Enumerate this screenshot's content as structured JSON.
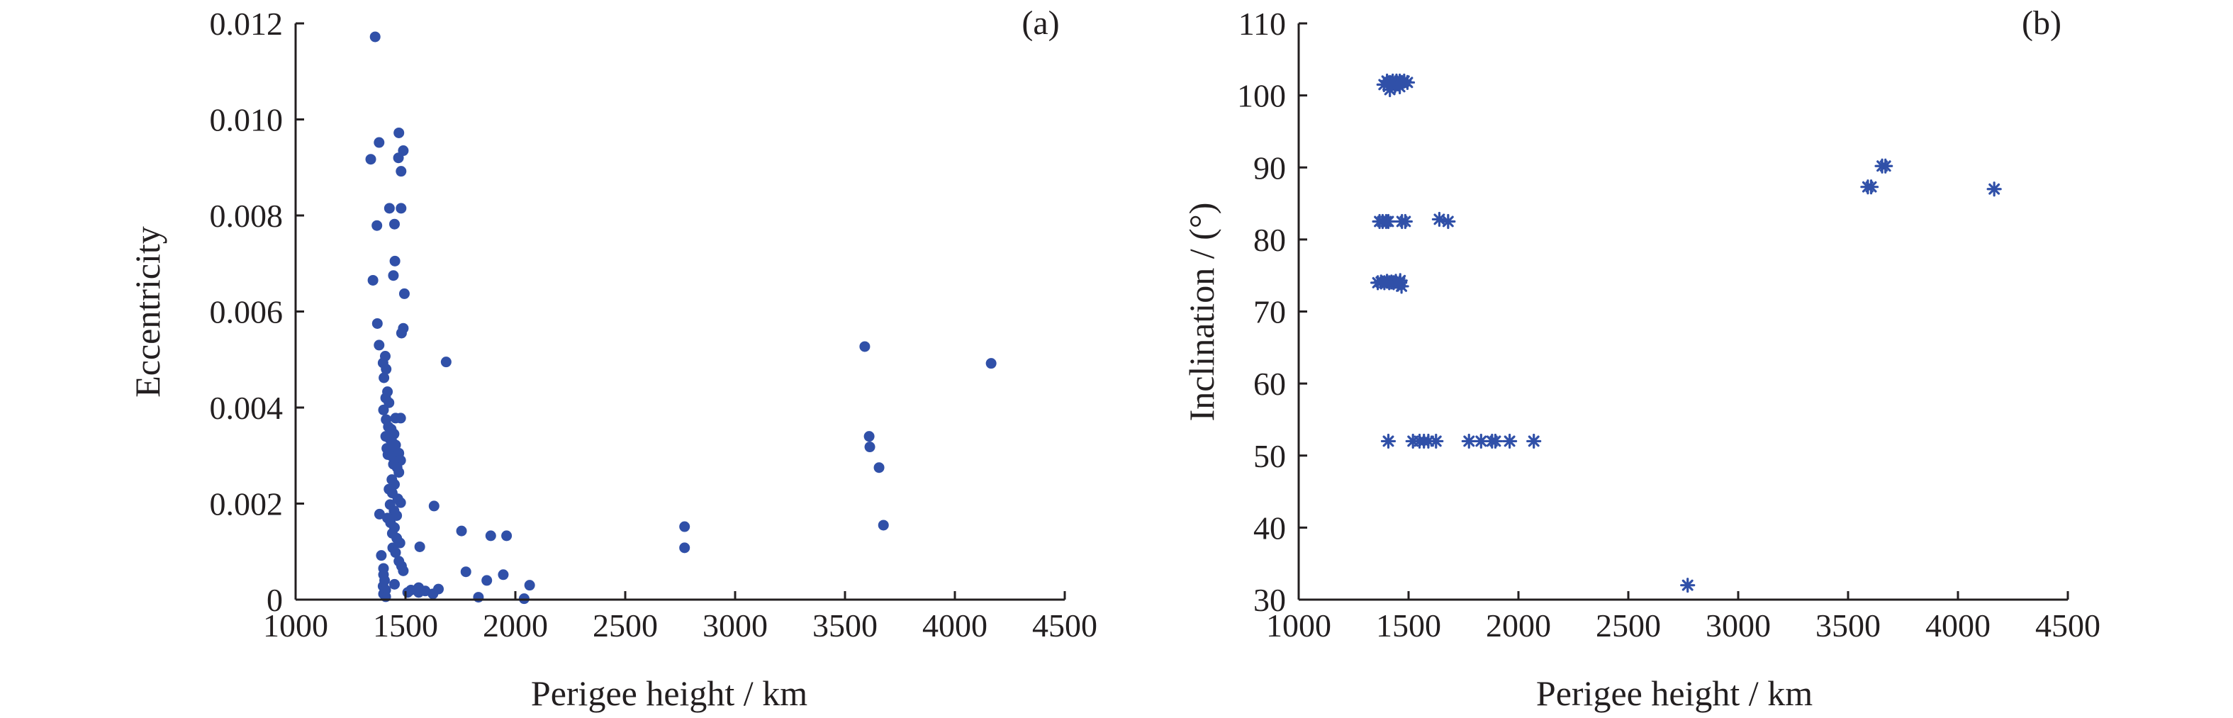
{
  "colors": {
    "marker": "#3050a8",
    "axis": "#231f20"
  },
  "chart_data": [
    {
      "type": "scatter",
      "panel_tag": "(a)",
      "xlabel": "Perigee height / km",
      "ylabel": "Eccentricity",
      "xlim": [
        1000,
        4500
      ],
      "ylim": [
        0,
        0.012
      ],
      "x_ticks": [
        1000,
        1500,
        2000,
        2500,
        3000,
        3500,
        4000,
        4500
      ],
      "x_tick_labels": [
        "1000",
        "1500",
        "2000",
        "2500",
        "3000",
        "3500",
        "4000",
        "4500"
      ],
      "y_ticks": [
        0,
        0.002,
        0.004,
        0.006,
        0.008,
        0.01,
        0.012
      ],
      "y_tick_labels": [
        "0",
        "0.002",
        "0.004",
        "0.006",
        "0.008",
        "0.010",
        "0.012"
      ],
      "grid": false,
      "marker": "dot",
      "points": [
        [
          1362,
          0.01172
        ],
        [
          1380,
          0.00952
        ],
        [
          1342,
          0.00917
        ],
        [
          1470,
          0.00972
        ],
        [
          1490,
          0.00935
        ],
        [
          1480,
          0.00892
        ],
        [
          1468,
          0.0092
        ],
        [
          1427,
          0.00815
        ],
        [
          1480,
          0.00815
        ],
        [
          1370,
          0.00779
        ],
        [
          1450,
          0.00782
        ],
        [
          1452,
          0.00705
        ],
        [
          1445,
          0.00675
        ],
        [
          1352,
          0.00665
        ],
        [
          1495,
          0.00637
        ],
        [
          1372,
          0.00575
        ],
        [
          1490,
          0.00565
        ],
        [
          1482,
          0.00555
        ],
        [
          1380,
          0.0053
        ],
        [
          1408,
          0.00507
        ],
        [
          1398,
          0.00493
        ],
        [
          1412,
          0.0048
        ],
        [
          1402,
          0.00462
        ],
        [
          1418,
          0.00433
        ],
        [
          1410,
          0.0042
        ],
        [
          1425,
          0.0041
        ],
        [
          1400,
          0.00395
        ],
        [
          1455,
          0.00378
        ],
        [
          1478,
          0.00378
        ],
        [
          1412,
          0.00375
        ],
        [
          1422,
          0.0036
        ],
        [
          1435,
          0.00355
        ],
        [
          1448,
          0.00345
        ],
        [
          1410,
          0.0034
        ],
        [
          1428,
          0.00335
        ],
        [
          1440,
          0.00328
        ],
        [
          1455,
          0.00322
        ],
        [
          1415,
          0.00315
        ],
        [
          1432,
          0.0031
        ],
        [
          1420,
          0.00302
        ],
        [
          1440,
          0.00298
        ],
        [
          1470,
          0.00305
        ],
        [
          1478,
          0.0029
        ],
        [
          1445,
          0.00282
        ],
        [
          1462,
          0.00275
        ],
        [
          1470,
          0.00265
        ],
        [
          1438,
          0.0025
        ],
        [
          1450,
          0.0024
        ],
        [
          1425,
          0.0023
        ],
        [
          1440,
          0.00222
        ],
        [
          1465,
          0.0021
        ],
        [
          1478,
          0.00202
        ],
        [
          1430,
          0.00198
        ],
        [
          1448,
          0.00185
        ],
        [
          1460,
          0.00175
        ],
        [
          1382,
          0.00178
        ],
        [
          1418,
          0.0017
        ],
        [
          1432,
          0.0016
        ],
        [
          1450,
          0.0015
        ],
        [
          1440,
          0.00138
        ],
        [
          1460,
          0.00128
        ],
        [
          1475,
          0.00118
        ],
        [
          1442,
          0.00108
        ],
        [
          1455,
          0.00098
        ],
        [
          1390,
          0.00092
        ],
        [
          1470,
          0.0008
        ],
        [
          1482,
          0.0007
        ],
        [
          1400,
          0.00065
        ],
        [
          1490,
          0.0006
        ],
        [
          1400,
          0.00052
        ],
        [
          1405,
          0.0004
        ],
        [
          1450,
          0.00032
        ],
        [
          1398,
          0.00028
        ],
        [
          1410,
          0.0002
        ],
        [
          1400,
          0.00012
        ],
        [
          1410,
          6e-05
        ],
        [
          1525,
          0.0002
        ],
        [
          1560,
          0.00015
        ],
        [
          1590,
          0.00018
        ],
        [
          1625,
          0.00012
        ],
        [
          1650,
          0.00022
        ],
        [
          1560,
          0.00025
        ],
        [
          1510,
          0.00015
        ],
        [
          1630,
          0.00195
        ],
        [
          1565,
          0.0011
        ],
        [
          1685,
          0.00495
        ],
        [
          1755,
          0.00143
        ],
        [
          1775,
          0.00058
        ],
        [
          1832,
          5e-05
        ],
        [
          1870,
          0.0004
        ],
        [
          1888,
          0.00133
        ],
        [
          1960,
          0.00133
        ],
        [
          1945,
          0.00052
        ],
        [
          2040,
          2e-05
        ],
        [
          2065,
          0.0003
        ],
        [
          2770,
          0.00152
        ],
        [
          2770,
          0.00108
        ],
        [
          3590,
          0.00527
        ],
        [
          3610,
          0.0034
        ],
        [
          3613,
          0.00318
        ],
        [
          3655,
          0.00275
        ],
        [
          3675,
          0.00155
        ],
        [
          4165,
          0.00492
        ]
      ]
    },
    {
      "type": "scatter",
      "panel_tag": "(b)",
      "xlabel": "Perigee height / km",
      "ylabel": "Inclination / (°)",
      "xlim": [
        1000,
        4500
      ],
      "ylim": [
        30,
        110
      ],
      "x_ticks": [
        1000,
        1500,
        2000,
        2500,
        3000,
        3500,
        4000,
        4500
      ],
      "x_tick_labels": [
        "1000",
        "1500",
        "2000",
        "2500",
        "3000",
        "3500",
        "4000",
        "4500"
      ],
      "y_ticks": [
        30,
        40,
        50,
        60,
        70,
        80,
        90,
        100,
        110
      ],
      "y_tick_labels": [
        "30",
        "40",
        "50",
        "60",
        "70",
        "80",
        "90",
        "100",
        "110"
      ],
      "grid": false,
      "marker": "asterisk",
      "points": [
        [
          1388,
          101.5
        ],
        [
          1402,
          102.0
        ],
        [
          1415,
          101.8
        ],
        [
          1428,
          102.0
        ],
        [
          1438,
          101.3
        ],
        [
          1445,
          102.0
        ],
        [
          1452,
          101.6
        ],
        [
          1460,
          102.0
        ],
        [
          1470,
          101.8
        ],
        [
          1480,
          102.0
        ],
        [
          1495,
          101.8
        ],
        [
          1415,
          100.8
        ],
        [
          1460,
          101.2
        ],
        [
          1368,
          82.5
        ],
        [
          1382,
          82.5
        ],
        [
          1398,
          82.5
        ],
        [
          1408,
          82.5
        ],
        [
          1470,
          82.5
        ],
        [
          1485,
          82.5
        ],
        [
          1640,
          82.8
        ],
        [
          1680,
          82.5
        ],
        [
          1360,
          74.0
        ],
        [
          1375,
          74.1
        ],
        [
          1390,
          74.0
        ],
        [
          1402,
          74.2
        ],
        [
          1412,
          74.0
        ],
        [
          1422,
          74.1
        ],
        [
          1432,
          74.0
        ],
        [
          1442,
          74.2
        ],
        [
          1452,
          73.8
        ],
        [
          1460,
          74.0
        ],
        [
          1468,
          73.5
        ],
        [
          1462,
          74.3
        ],
        [
          1408,
          52.0
        ],
        [
          1520,
          52.0
        ],
        [
          1550,
          52.0
        ],
        [
          1570,
          52.0
        ],
        [
          1590,
          52.0
        ],
        [
          1625,
          52.0
        ],
        [
          1775,
          52.0
        ],
        [
          1830,
          52.0
        ],
        [
          1880,
          52.0
        ],
        [
          1895,
          52.0
        ],
        [
          1960,
          52.0
        ],
        [
          2070,
          52.0
        ],
        [
          2770,
          32.0
        ],
        [
          3590,
          87.3
        ],
        [
          3605,
          87.3
        ],
        [
          3655,
          90.2
        ],
        [
          3670,
          90.2
        ],
        [
          4165,
          87.0
        ]
      ]
    }
  ]
}
